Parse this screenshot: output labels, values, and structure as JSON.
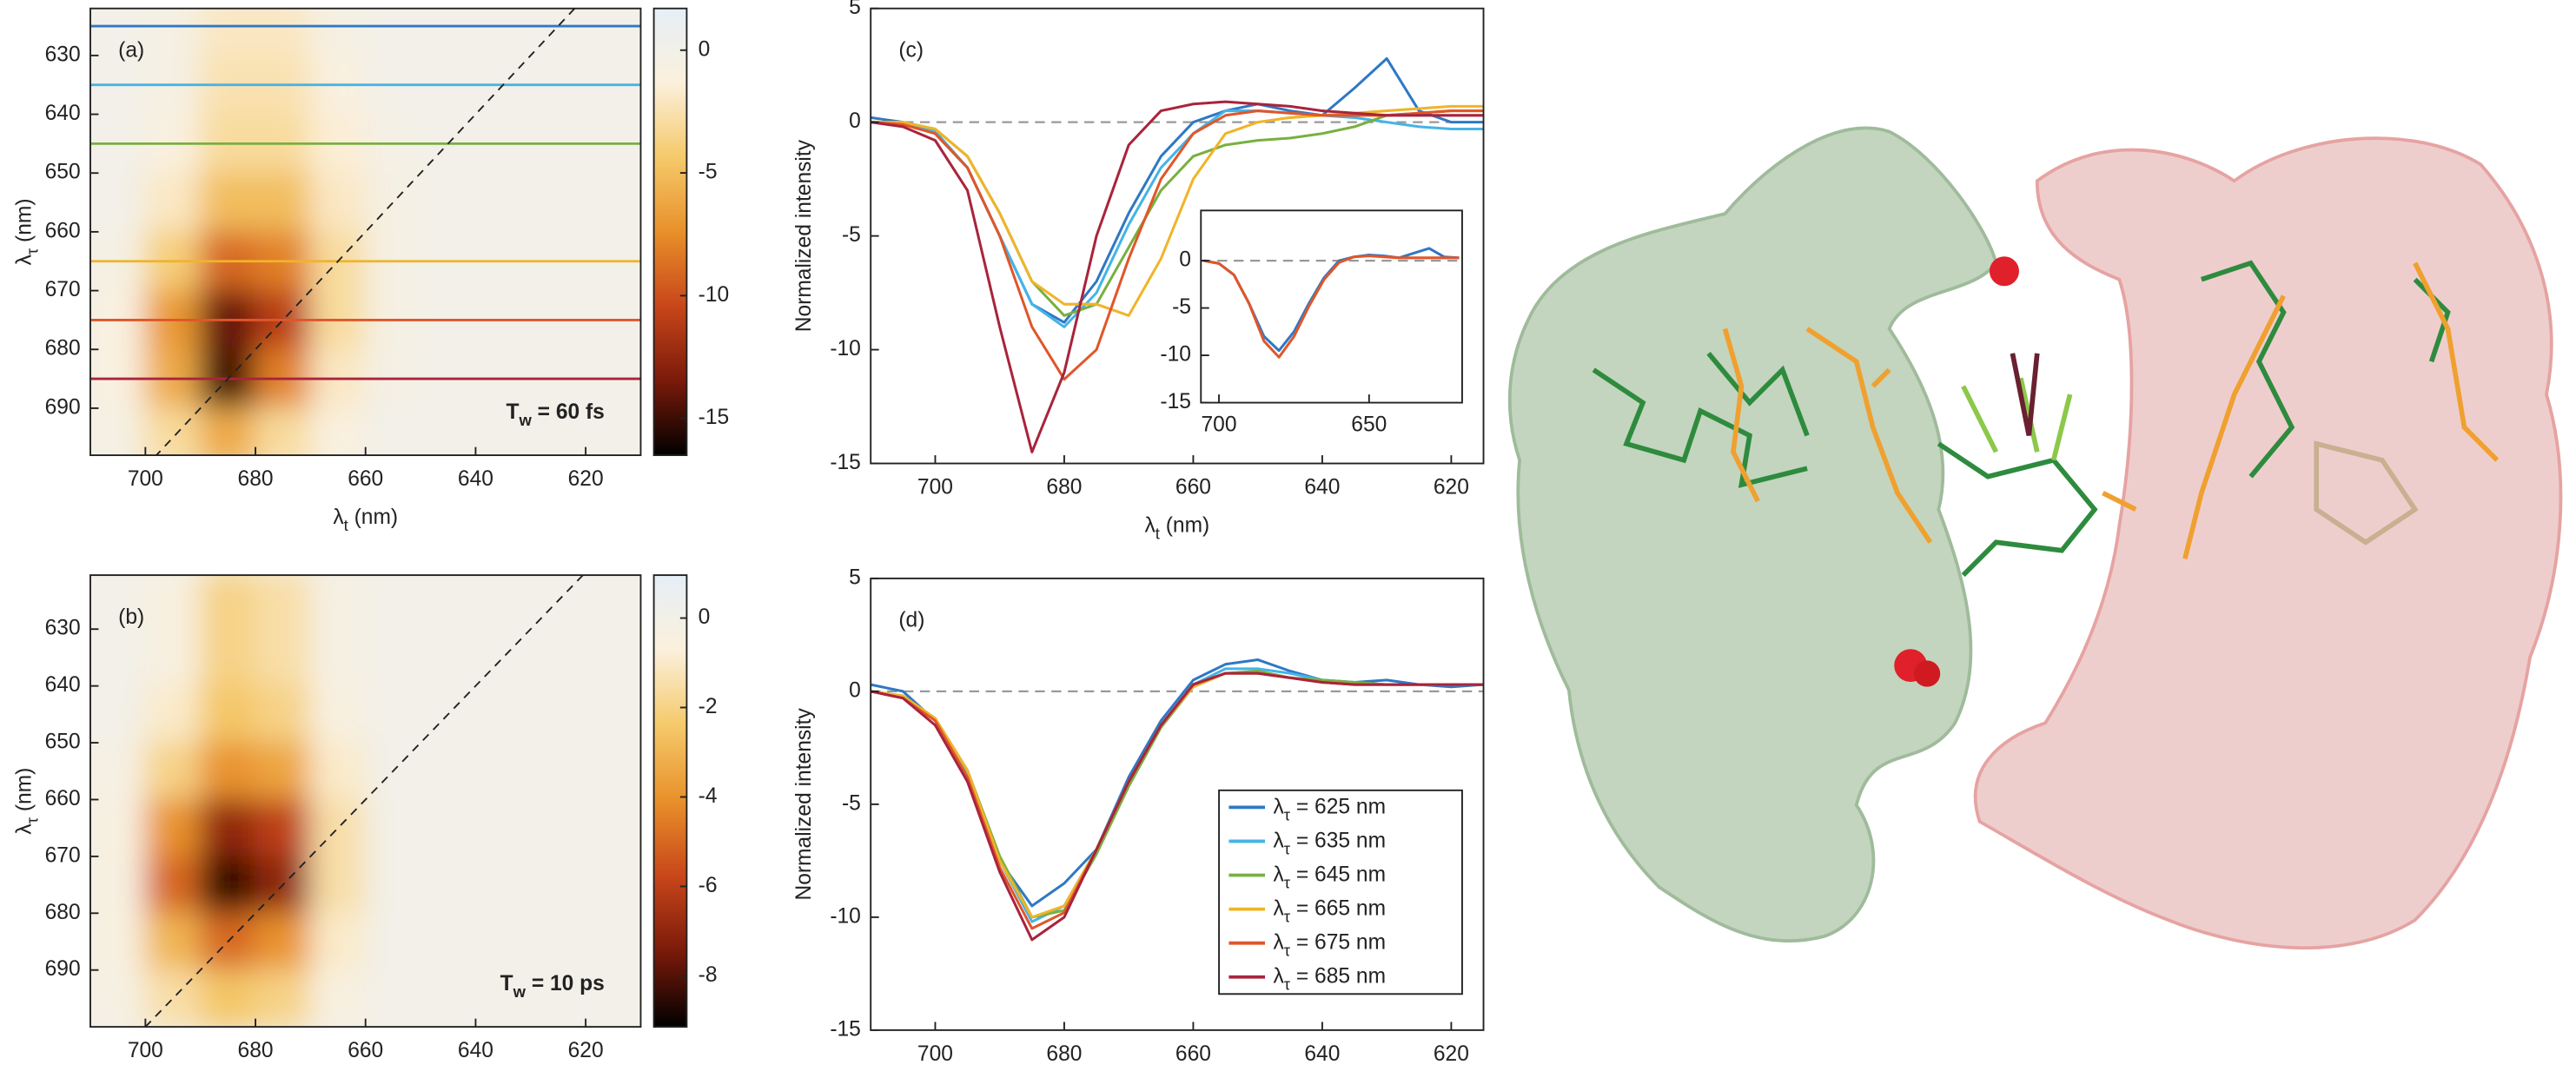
{
  "chart_data": [
    {
      "type": "heatmap",
      "panel_label": "(a)",
      "annotation": [
        "T",
        "w",
        " = 60 fs"
      ],
      "xlabel": [
        "λ",
        "t",
        " (nm)"
      ],
      "ylabel": [
        "λ",
        "τ",
        " (nm)"
      ],
      "x": [
        705,
        695,
        685,
        675,
        665,
        655,
        645,
        635,
        625,
        615
      ],
      "y": [
        625,
        635,
        645,
        655,
        665,
        675,
        685,
        695
      ],
      "z": [
        [
          0,
          -0.5,
          -2,
          -2,
          -0.5,
          0,
          0,
          0,
          0,
          0
        ],
        [
          0,
          -0.5,
          -2.5,
          -2.5,
          -1,
          0,
          0,
          0,
          0,
          0
        ],
        [
          0,
          -1,
          -3,
          -3,
          -1.5,
          -0.3,
          0,
          0,
          0,
          0
        ],
        [
          0,
          -2,
          -5,
          -5,
          -2,
          -0.5,
          0,
          0,
          0,
          0
        ],
        [
          -0.5,
          -4,
          -9,
          -8,
          -3,
          -0.5,
          0,
          0,
          0,
          0
        ],
        [
          -1,
          -7,
          -14,
          -11,
          -3,
          -0.5,
          0,
          0,
          0,
          0
        ],
        [
          -1,
          -6,
          -15,
          -8,
          -2,
          -0.3,
          0,
          0,
          0,
          0
        ],
        [
          -0.5,
          -3,
          -6,
          -3,
          -1,
          0,
          0,
          0,
          0,
          0
        ]
      ],
      "xlim": [
        710,
        610
      ],
      "ylim": [
        622,
        698
      ],
      "xticks": [
        700,
        680,
        660,
        640,
        620
      ],
      "yticks": [
        630,
        640,
        650,
        660,
        670,
        680,
        690
      ],
      "clim": [
        -16.5,
        1.7
      ],
      "cticks": [
        0,
        -5,
        -10,
        -15
      ],
      "colormap": [
        "#000000",
        "#7a1a0a",
        "#c8461a",
        "#e8902a",
        "#f5c96a",
        "#fbf0dc",
        "#e6eff7"
      ],
      "lines": [
        {
          "value": 625,
          "color": "#2f78c4"
        },
        {
          "value": 635,
          "color": "#45b4e6"
        },
        {
          "value": 645,
          "color": "#78b040"
        },
        {
          "value": 665,
          "color": "#f0b429"
        },
        {
          "value": 675,
          "color": "#e0562a"
        },
        {
          "value": 685,
          "color": "#a8243c"
        }
      ],
      "diagonal": true
    },
    {
      "type": "heatmap",
      "panel_label": "(b)",
      "annotation": [
        "T",
        "w",
        " = 10 ps"
      ],
      "ylabel": [
        "λ",
        "τ",
        " (nm)"
      ],
      "x": [
        705,
        695,
        685,
        675,
        665,
        655,
        645,
        635,
        625,
        615
      ],
      "y": [
        625,
        635,
        645,
        655,
        665,
        675,
        685,
        695
      ],
      "z": [
        [
          0,
          -0.5,
          -2,
          -1.5,
          -0.3,
          0,
          0,
          0,
          0,
          0
        ],
        [
          0,
          -0.5,
          -2,
          -1.5,
          -0.3,
          0,
          0,
          0,
          0,
          0
        ],
        [
          0,
          -1,
          -2.5,
          -2,
          -0.5,
          0,
          0,
          0,
          0,
          0
        ],
        [
          -0.3,
          -2,
          -4,
          -3.5,
          -1,
          0,
          0,
          0,
          0,
          0
        ],
        [
          -0.5,
          -4,
          -7,
          -6,
          -1.5,
          0,
          0,
          0,
          0,
          0
        ],
        [
          -0.5,
          -5,
          -8.5,
          -7,
          -1.5,
          0,
          0,
          0,
          0,
          0
        ],
        [
          -0.5,
          -3,
          -5,
          -4,
          -1,
          0,
          0,
          0,
          0,
          0
        ],
        [
          -0.3,
          -1.5,
          -2.5,
          -2,
          -0.5,
          0,
          0,
          0,
          0,
          0
        ]
      ],
      "xlim": [
        710,
        610
      ],
      "ylim": [
        620.5,
        700
      ],
      "xticks": [
        700,
        680,
        660,
        640,
        620
      ],
      "yticks": [
        630,
        640,
        650,
        660,
        670,
        680,
        690
      ],
      "clim": [
        -9.14,
        0.96
      ],
      "cticks": [
        0,
        -2,
        -4,
        -6,
        -8
      ],
      "colormap": [
        "#000000",
        "#7a1a0a",
        "#c8461a",
        "#e8902a",
        "#f5c96a",
        "#fbf0dc",
        "#e6eff7"
      ],
      "diagonal": true
    },
    {
      "type": "line",
      "panel_label": "(c)",
      "xlabel": [
        "λ",
        "t",
        " (nm)"
      ],
      "ylabel": "Normalized intensity",
      "x": [
        710,
        705,
        700,
        695,
        690,
        685,
        680,
        675,
        670,
        665,
        660,
        655,
        650,
        645,
        640,
        635,
        630,
        625,
        620,
        615
      ],
      "xlim": [
        710,
        615
      ],
      "ylim": [
        -15,
        5
      ],
      "xticks": [
        700,
        680,
        660,
        640,
        620
      ],
      "yticks": [
        5,
        0,
        -5,
        -10,
        -15
      ],
      "zero_line": true,
      "series": [
        {
          "color": "#2f78c4",
          "values": [
            0.2,
            0,
            -0.5,
            -2,
            -5,
            -8,
            -8.8,
            -7,
            -4,
            -1.5,
            0,
            0.5,
            0.8,
            0.5,
            0.3,
            1.5,
            2.8,
            0.5,
            0,
            0
          ]
        },
        {
          "color": "#45b4e6",
          "values": [
            0,
            0,
            -0.4,
            -2,
            -5,
            -8,
            -9,
            -7.5,
            -4.5,
            -2,
            -0.5,
            0.5,
            0.5,
            0.4,
            0.3,
            0.2,
            0,
            -0.2,
            -0.3,
            -0.3
          ]
        },
        {
          "color": "#78b040",
          "values": [
            0,
            0,
            -0.3,
            -1.5,
            -4,
            -7,
            -8.5,
            -8,
            -5.5,
            -3,
            -1.5,
            -1,
            -0.8,
            -0.7,
            -0.5,
            -0.2,
            0.3,
            0.4,
            0.5,
            0.5
          ]
        },
        {
          "color": "#f0b429",
          "values": [
            0,
            0,
            -0.3,
            -1.5,
            -4,
            -7,
            -8,
            -8,
            -8.5,
            -6,
            -2.5,
            -0.5,
            0,
            0.2,
            0.3,
            0.4,
            0.5,
            0.6,
            0.7,
            0.7
          ]
        },
        {
          "color": "#e0562a",
          "values": [
            0,
            -0.1,
            -0.5,
            -2,
            -5,
            -9,
            -11.3,
            -10,
            -6,
            -2.5,
            -0.5,
            0.3,
            0.5,
            0.4,
            0.3,
            0.3,
            0.3,
            0.4,
            0.5,
            0.5
          ]
        },
        {
          "color": "#a8243c",
          "values": [
            0,
            -0.2,
            -0.8,
            -3,
            -9,
            -14.5,
            -11,
            -5,
            -1,
            0.5,
            0.8,
            0.9,
            0.8,
            0.7,
            0.5,
            0.4,
            0.3,
            0.3,
            0.3,
            0.3
          ]
        }
      ],
      "inset": {
        "x": [
          705,
          700,
          695,
          690,
          685,
          680,
          675,
          670,
          665,
          660,
          655,
          650,
          645,
          640,
          635,
          630,
          625,
          620
        ],
        "xlim": [
          706,
          619
        ],
        "ylim": [
          -15,
          5.3
        ],
        "xticks": [
          700,
          650
        ],
        "yticks": [
          0,
          -5,
          -10,
          -15
        ],
        "zero_line": true,
        "series": [
          {
            "color": "#2f78c4",
            "values": [
              0,
              -0.3,
              -1.5,
              -4.5,
              -8,
              -9.5,
              -7.5,
              -4.5,
              -1.8,
              0,
              0.4,
              0.6,
              0.5,
              0.3,
              0.8,
              1.3,
              0.4,
              0.3
            ]
          },
          {
            "color": "#e0562a",
            "values": [
              0,
              -0.3,
              -1.5,
              -4.5,
              -8.5,
              -10.2,
              -8,
              -4.8,
              -2,
              -0.2,
              0.4,
              0.5,
              0.4,
              0.3,
              0.3,
              0.3,
              0.3,
              0.3
            ]
          }
        ]
      }
    },
    {
      "type": "line",
      "panel_label": "(d)",
      "ylabel": "Normalized intensity",
      "x": [
        710,
        705,
        700,
        695,
        690,
        685,
        680,
        675,
        670,
        665,
        660,
        655,
        650,
        645,
        640,
        635,
        630,
        625,
        620,
        615
      ],
      "xlim": [
        710,
        615
      ],
      "ylim": [
        -15,
        5
      ],
      "xticks": [
        700,
        680,
        660,
        640,
        620
      ],
      "yticks": [
        5,
        0,
        -5,
        -10,
        -15
      ],
      "zero_line": true,
      "legend": "lower right",
      "series": [
        {
          "name": [
            "λ",
            "τ",
            " = 625 nm"
          ],
          "color": "#2f78c4",
          "values": [
            0.3,
            0,
            -1.3,
            -3.5,
            -7.5,
            -9.5,
            -8.5,
            -7,
            -3.8,
            -1.3,
            0.5,
            1.2,
            1.4,
            0.9,
            0.5,
            0.4,
            0.5,
            0.3,
            0.2,
            0.3
          ]
        },
        {
          "name": [
            "λ",
            "τ",
            " = 635 nm"
          ],
          "color": "#45b4e6",
          "values": [
            0,
            -0.2,
            -1.2,
            -3.6,
            -7.5,
            -10.2,
            -9.5,
            -7,
            -4,
            -1.5,
            0.3,
            1,
            1,
            0.8,
            0.5,
            0.4,
            0.3,
            0.3,
            0.3,
            0.3
          ]
        },
        {
          "name": [
            "λ",
            "τ",
            " = 645 nm"
          ],
          "color": "#78b040",
          "values": [
            0,
            -0.2,
            -1.2,
            -3.5,
            -7.3,
            -10,
            -9.7,
            -7.2,
            -4.2,
            -1.6,
            0.2,
            0.8,
            0.9,
            0.6,
            0.5,
            0.4,
            0.3,
            0.3,
            0.3,
            0.3
          ]
        },
        {
          "name": [
            "λ",
            "τ",
            " = 665 nm"
          ],
          "color": "#f0b429",
          "values": [
            0,
            -0.2,
            -1.2,
            -3.5,
            -7.5,
            -10,
            -9.5,
            -7,
            -4,
            -1.5,
            0.2,
            0.8,
            0.8,
            0.6,
            0.4,
            0.3,
            0.3,
            0.3,
            0.3,
            0.3
          ]
        },
        {
          "name": [
            "λ",
            "τ",
            " = 675 nm"
          ],
          "color": "#e0562a",
          "values": [
            0,
            -0.3,
            -1.3,
            -3.8,
            -7.8,
            -10.5,
            -9.8,
            -7,
            -4,
            -1.5,
            0.3,
            0.8,
            0.8,
            0.6,
            0.4,
            0.3,
            0.3,
            0.3,
            0.3,
            0.3
          ]
        },
        {
          "name": [
            "λ",
            "τ",
            " = 685 nm"
          ],
          "color": "#a8243c",
          "values": [
            0,
            -0.3,
            -1.5,
            -4,
            -8,
            -11,
            -10,
            -7,
            -4,
            -1.5,
            0.3,
            0.8,
            0.8,
            0.6,
            0.4,
            0.3,
            0.3,
            0.3,
            0.3,
            0.3
          ]
        }
      ]
    }
  ]
}
